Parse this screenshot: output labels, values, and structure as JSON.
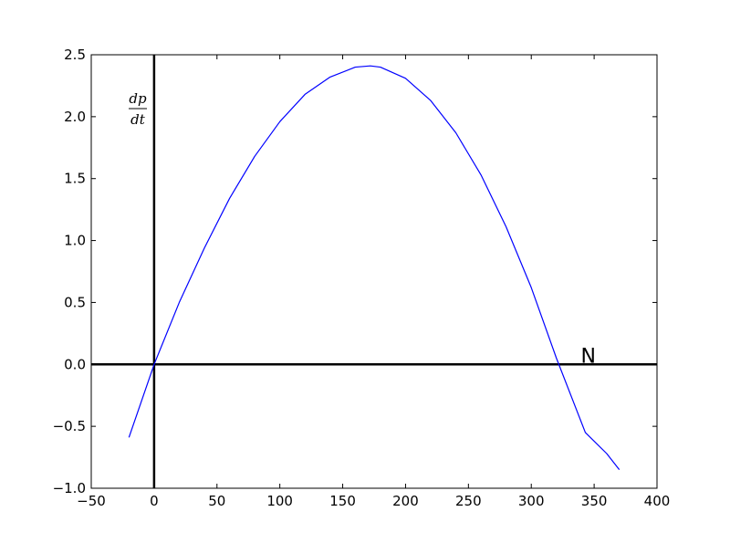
{
  "chart_data": {
    "type": "line",
    "title": "",
    "xlabel": "",
    "ylabel": {
      "numerator": "dp",
      "denominator": "dt"
    },
    "xlim": [
      -50,
      400
    ],
    "ylim": [
      -1.0,
      2.5
    ],
    "x_ticks": [
      -50,
      0,
      50,
      100,
      150,
      200,
      250,
      300,
      350,
      400
    ],
    "x_tick_labels": [
      "−50",
      "0",
      "50",
      "100",
      "150",
      "200",
      "250",
      "300",
      "350",
      "400"
    ],
    "y_ticks": [
      -1.0,
      -0.5,
      0.0,
      0.5,
      1.0,
      1.5,
      2.0,
      2.5
    ],
    "y_tick_labels": [
      "−1.0",
      "−0.5",
      "0.0",
      "0.5",
      "1.0",
      "1.5",
      "2.0",
      "2.5"
    ],
    "grid": false,
    "reference_lines": {
      "x": 0,
      "y": 0
    },
    "annotations": [
      {
        "text": "N",
        "x": 343,
        "y": 0.0
      }
    ],
    "series": [
      {
        "color": "#0000ff",
        "x": [
          -20,
          0,
          20,
          40,
          60,
          80,
          100,
          120,
          140,
          160,
          172,
          180,
          200,
          220,
          240,
          260,
          280,
          300,
          320,
          343,
          360,
          370
        ],
        "y": [
          -0.59,
          0.0,
          0.5,
          0.94,
          1.34,
          1.68,
          1.96,
          2.18,
          2.32,
          2.4,
          2.41,
          2.4,
          2.31,
          2.13,
          1.87,
          1.53,
          1.11,
          0.62,
          0.05,
          -0.55,
          -0.72,
          -0.85
        ]
      }
    ]
  }
}
